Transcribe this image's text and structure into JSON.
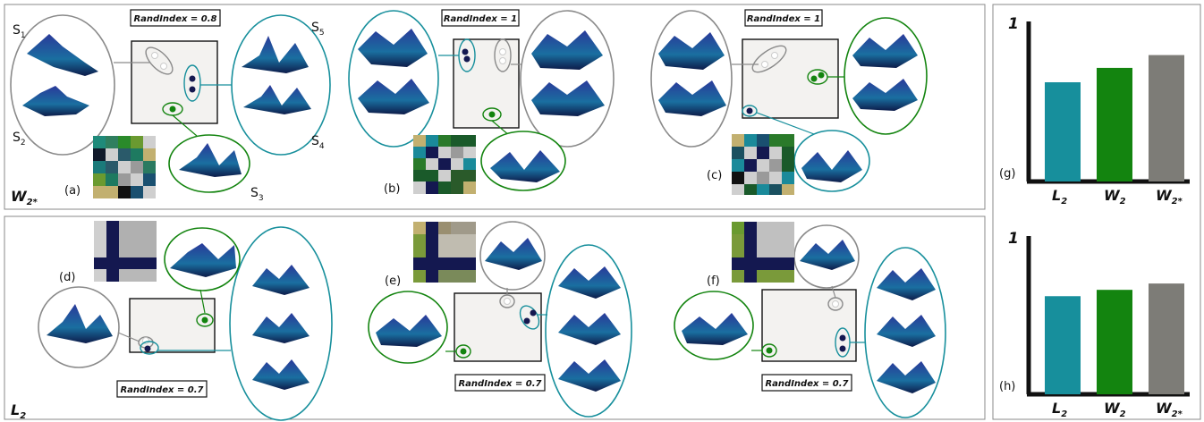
{
  "top_row": {
    "row_label": "W",
    "row_label_sub": "2*",
    "panels": [
      {
        "letter": "(a)",
        "randindex": "RandIndex = 0.8"
      },
      {
        "letter": "(b)",
        "randindex": "RandIndex = 1"
      },
      {
        "letter": "(c)",
        "randindex": "RandIndex = 1"
      }
    ],
    "surface_labels": {
      "s1": "S",
      "s1_sub": "1",
      "s2": "S",
      "s2_sub": "2",
      "s3": "S",
      "s3_sub": "3",
      "s4": "S",
      "s4_sub": "4",
      "s5": "S",
      "s5_sub": "5"
    }
  },
  "bottom_row": {
    "row_label": "L",
    "row_label_sub": "2",
    "panels": [
      {
        "letter": "(d)",
        "randindex": "RandIndex = 0.7"
      },
      {
        "letter": "(e)",
        "randindex": "RandIndex = 0.7"
      },
      {
        "letter": "(f)",
        "randindex": "RandIndex = 0.7"
      }
    ]
  },
  "bar_panels": [
    {
      "letter": "(g)",
      "y_tick": "1",
      "bars": [
        {
          "label": "L",
          "sub": "2",
          "value": 0.62,
          "color": "#178f9c"
        },
        {
          "label": "W",
          "sub": "2",
          "value": 0.71,
          "color": "#13840f"
        },
        {
          "label": "W",
          "sub": "2*",
          "value": 0.79,
          "color": "#7d7c77"
        }
      ]
    },
    {
      "letter": "(h)",
      "y_tick": "1",
      "bars": [
        {
          "label": "L",
          "sub": "2",
          "value": 0.62,
          "color": "#178f9c"
        },
        {
          "label": "W",
          "sub": "2",
          "value": 0.66,
          "color": "#13840f"
        },
        {
          "label": "W",
          "sub": "2*",
          "value": 0.7,
          "color": "#7d7c77"
        }
      ]
    }
  ],
  "colors": {
    "teal": "#178f9c",
    "green": "#13840f",
    "gray": "#8a8a8a",
    "navy": "#141850"
  }
}
